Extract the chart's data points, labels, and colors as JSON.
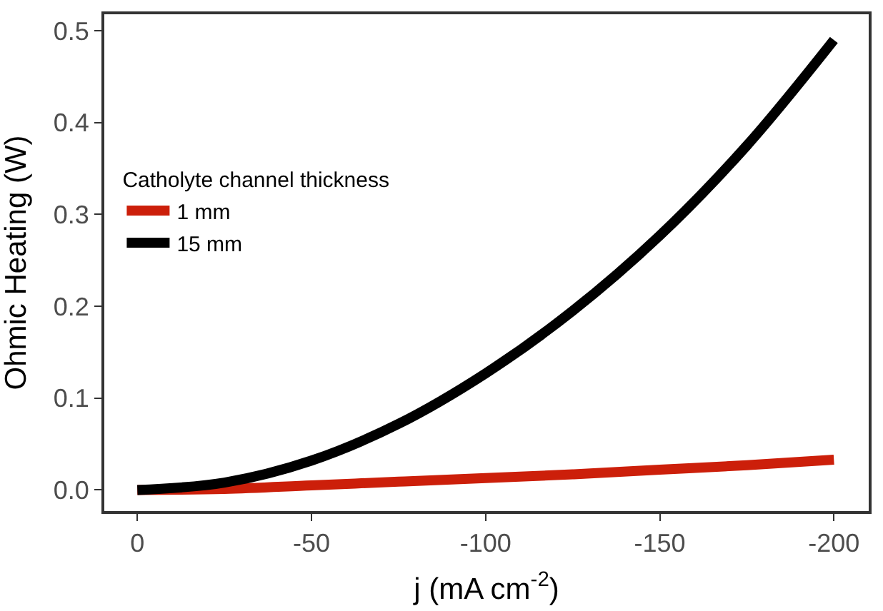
{
  "chart_data": {
    "type": "line",
    "xlabel": "j (mA cm$^{-2}$)",
    "ylabel": "Ohmic Heating (W)",
    "legend_title": "Catholyte channel thickness",
    "x": [
      0,
      -25,
      -50,
      -75,
      -100,
      -125,
      -150,
      -175,
      -200
    ],
    "series": [
      {
        "name": "1 mm",
        "color": "#cc1f0a",
        "values": [
          0,
          0.001,
          0.005,
          0.009,
          0.013,
          0.017,
          0.022,
          0.027,
          0.033
        ]
      },
      {
        "name": "15 mm",
        "color": "#000000",
        "values": [
          0,
          0.008,
          0.032,
          0.072,
          0.127,
          0.195,
          0.277,
          0.375,
          0.49
        ]
      }
    ],
    "xlim": [
      9.5,
      -210
    ],
    "xticks": [
      0,
      -50,
      -100,
      -150,
      -200
    ],
    "ylim": [
      -0.023,
      0.518
    ],
    "yticks": [
      {
        "value": 0,
        "label": "0.0"
      },
      0.1,
      0.2,
      0.3,
      0.4,
      0.5
    ],
    "legend": "left",
    "line_style": "solid",
    "marker": "none"
  }
}
